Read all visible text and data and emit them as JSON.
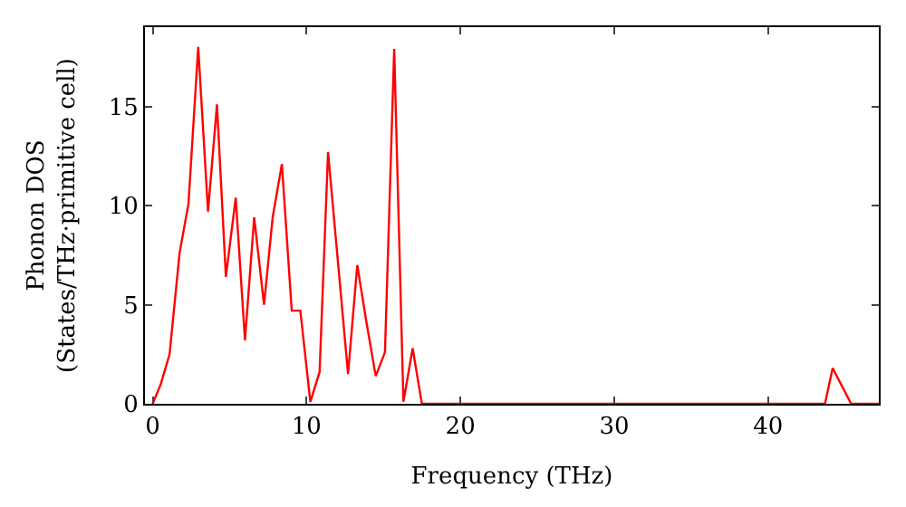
{
  "chart_data": {
    "type": "line",
    "xlabel": "Frequency (THz)",
    "ylabel": "Phonon DOS\n(States/THz·primitive cell)",
    "series": [
      {
        "color": "#ff0000",
        "x": [
          0,
          0.53,
          1.1,
          1.75,
          2.33,
          2.96,
          3.6,
          4.18,
          4.76,
          5.4,
          6.0,
          6.6,
          7.24,
          7.8,
          8.4,
          9.04,
          9.6,
          10.25,
          10.85,
          11.4,
          12.7,
          13.3,
          13.9,
          14.5,
          15.1,
          15.7,
          16.3,
          16.9,
          17.5,
          30,
          43.7,
          44.2,
          45.4,
          47.2
        ],
        "values": [
          0,
          1.0,
          2.5,
          7.6,
          10.1,
          18.0,
          9.7,
          15.1,
          6.4,
          10.4,
          3.2,
          9.4,
          5.0,
          9.4,
          12.1,
          4.7,
          4.7,
          0.1,
          1.6,
          12.7,
          1.5,
          7.0,
          4.1,
          1.4,
          2.6,
          17.9,
          0.1,
          2.8,
          0,
          0,
          0,
          1.8,
          0,
          0
        ]
      }
    ],
    "xlim": [
      -0.5,
      47.2
    ],
    "ylim": [
      0,
      19
    ],
    "xticks": [
      0,
      10,
      20,
      30,
      40
    ],
    "yticks": [
      0,
      5,
      10,
      15
    ],
    "grid": false,
    "marker": "none",
    "line_style": "solid"
  }
}
